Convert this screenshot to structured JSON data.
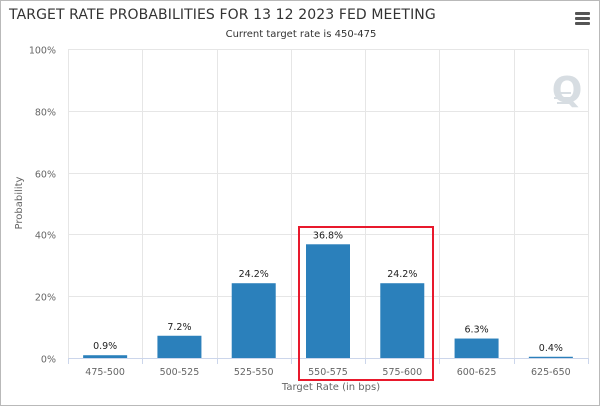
{
  "header": {
    "title": "TARGET RATE PROBABILITIES FOR 13 12 2023 FED MEETING",
    "subtitle": "Current target rate is 450-475"
  },
  "menu": {
    "icon": "hamburger-menu-icon"
  },
  "watermark": {
    "text": "Q"
  },
  "colors": {
    "bar": "#2b80bb",
    "highlight": "#e8192c",
    "grid": "#e6e6e6",
    "axis": "#ccd6eb"
  },
  "chart_data": {
    "type": "bar",
    "title": "TARGET RATE PROBABILITIES FOR 13 12 2023 FED MEETING",
    "subtitle": "Current target rate is 450-475",
    "xlabel": "Target Rate (in bps)",
    "ylabel": "Probability",
    "ylim": [
      0,
      100
    ],
    "yticks": [
      0,
      20,
      40,
      60,
      80,
      100
    ],
    "ytick_labels": [
      "0%",
      "20%",
      "40%",
      "60%",
      "80%",
      "100%"
    ],
    "categories": [
      "475-500",
      "500-525",
      "525-550",
      "550-575",
      "575-600",
      "600-625",
      "625-650"
    ],
    "values": [
      0.9,
      7.2,
      24.2,
      36.8,
      24.2,
      6.3,
      0.4
    ],
    "data_labels": [
      "0.9%",
      "7.2%",
      "24.2%",
      "36.8%",
      "24.2%",
      "6.3%",
      "0.4%"
    ],
    "highlighted_categories": [
      "550-575",
      "575-600"
    ],
    "grid": true,
    "legend": "none"
  }
}
